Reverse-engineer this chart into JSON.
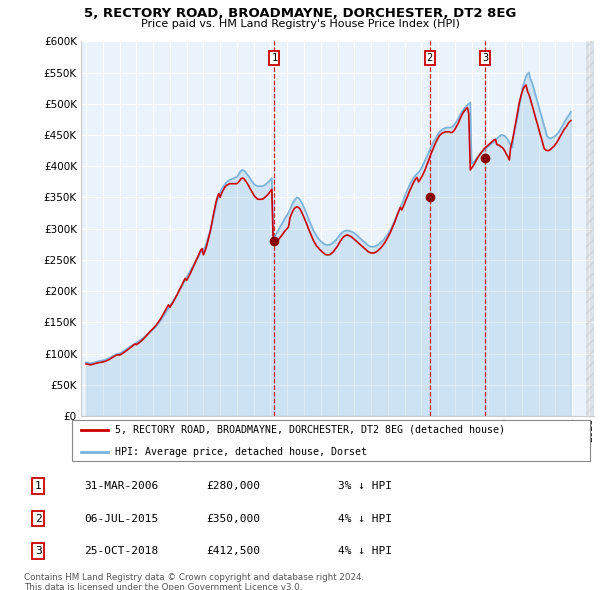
{
  "title": "5, RECTORY ROAD, BROADMAYNE, DORCHESTER, DT2 8EG",
  "subtitle": "Price paid vs. HM Land Registry's House Price Index (HPI)",
  "ylim": [
    0,
    600000
  ],
  "yticks": [
    0,
    50000,
    100000,
    150000,
    200000,
    250000,
    300000,
    350000,
    400000,
    450000,
    500000,
    550000,
    600000
  ],
  "xlim_start": 1994.7,
  "xlim_end": 2025.3,
  "sale_color": "#cc0000",
  "hpi_color": "#7ab3d9",
  "fill_color": "#ddeeff",
  "grid_color": "#cccccc",
  "bg_color": "#eaf3fb",
  "sale_dates": [
    2006.24,
    2015.5,
    2018.81
  ],
  "sale_prices": [
    280000,
    350000,
    412500
  ],
  "sale_labels": [
    "1",
    "2",
    "3"
  ],
  "transactions": [
    {
      "label": "1",
      "date": "31-MAR-2006",
      "price": "£280,000",
      "diff": "3% ↓ HPI"
    },
    {
      "label": "2",
      "date": "06-JUL-2015",
      "price": "£350,000",
      "diff": "4% ↓ HPI"
    },
    {
      "label": "3",
      "date": "25-OCT-2018",
      "price": "£412,500",
      "diff": "4% ↓ HPI"
    }
  ],
  "legend_line1": "5, RECTORY ROAD, BROADMAYNE, DORCHESTER, DT2 8EG (detached house)",
  "legend_line2": "HPI: Average price, detached house, Dorset",
  "footnote1": "Contains HM Land Registry data © Crown copyright and database right 2024.",
  "footnote2": "This data is licensed under the Open Government Licence v3.0.",
  "hpi_x": [
    1995.0,
    1995.08,
    1995.17,
    1995.25,
    1995.33,
    1995.42,
    1995.5,
    1995.58,
    1995.67,
    1995.75,
    1995.83,
    1995.92,
    1996.0,
    1996.08,
    1996.17,
    1996.25,
    1996.33,
    1996.42,
    1996.5,
    1996.58,
    1996.67,
    1996.75,
    1996.83,
    1996.92,
    1997.0,
    1997.08,
    1997.17,
    1997.25,
    1997.33,
    1997.42,
    1997.5,
    1997.58,
    1997.67,
    1997.75,
    1997.83,
    1997.92,
    1998.0,
    1998.08,
    1998.17,
    1998.25,
    1998.33,
    1998.42,
    1998.5,
    1998.58,
    1998.67,
    1998.75,
    1998.83,
    1998.92,
    1999.0,
    1999.08,
    1999.17,
    1999.25,
    1999.33,
    1999.42,
    1999.5,
    1999.58,
    1999.67,
    1999.75,
    1999.83,
    1999.92,
    2000.0,
    2000.08,
    2000.17,
    2000.25,
    2000.33,
    2000.42,
    2000.5,
    2000.58,
    2000.67,
    2000.75,
    2000.83,
    2000.92,
    2001.0,
    2001.08,
    2001.17,
    2001.25,
    2001.33,
    2001.42,
    2001.5,
    2001.58,
    2001.67,
    2001.75,
    2001.83,
    2001.92,
    2002.0,
    2002.08,
    2002.17,
    2002.25,
    2002.33,
    2002.42,
    2002.5,
    2002.58,
    2002.67,
    2002.75,
    2002.83,
    2002.92,
    2003.0,
    2003.08,
    2003.17,
    2003.25,
    2003.33,
    2003.42,
    2003.5,
    2003.58,
    2003.67,
    2003.75,
    2003.83,
    2003.92,
    2004.0,
    2004.08,
    2004.17,
    2004.25,
    2004.33,
    2004.42,
    2004.5,
    2004.58,
    2004.67,
    2004.75,
    2004.83,
    2004.92,
    2005.0,
    2005.08,
    2005.17,
    2005.25,
    2005.33,
    2005.42,
    2005.5,
    2005.58,
    2005.67,
    2005.75,
    2005.83,
    2005.92,
    2006.0,
    2006.08,
    2006.17,
    2006.25,
    2006.33,
    2006.42,
    2006.5,
    2006.58,
    2006.67,
    2006.75,
    2006.83,
    2006.92,
    2007.0,
    2007.08,
    2007.17,
    2007.25,
    2007.33,
    2007.42,
    2007.5,
    2007.58,
    2007.67,
    2007.75,
    2007.83,
    2007.92,
    2008.0,
    2008.08,
    2008.17,
    2008.25,
    2008.33,
    2008.42,
    2008.5,
    2008.58,
    2008.67,
    2008.75,
    2008.83,
    2008.92,
    2009.0,
    2009.08,
    2009.17,
    2009.25,
    2009.33,
    2009.42,
    2009.5,
    2009.58,
    2009.67,
    2009.75,
    2009.83,
    2009.92,
    2010.0,
    2010.08,
    2010.17,
    2010.25,
    2010.33,
    2010.42,
    2010.5,
    2010.58,
    2010.67,
    2010.75,
    2010.83,
    2010.92,
    2011.0,
    2011.08,
    2011.17,
    2011.25,
    2011.33,
    2011.42,
    2011.5,
    2011.58,
    2011.67,
    2011.75,
    2011.83,
    2011.92,
    2012.0,
    2012.08,
    2012.17,
    2012.25,
    2012.33,
    2012.42,
    2012.5,
    2012.58,
    2012.67,
    2012.75,
    2012.83,
    2012.92,
    2013.0,
    2013.08,
    2013.17,
    2013.25,
    2013.33,
    2013.42,
    2013.5,
    2013.58,
    2013.67,
    2013.75,
    2013.83,
    2013.92,
    2014.0,
    2014.08,
    2014.17,
    2014.25,
    2014.33,
    2014.42,
    2014.5,
    2014.58,
    2014.67,
    2014.75,
    2014.83,
    2014.92,
    2015.0,
    2015.08,
    2015.17,
    2015.25,
    2015.33,
    2015.42,
    2015.5,
    2015.58,
    2015.67,
    2015.75,
    2015.83,
    2015.92,
    2016.0,
    2016.08,
    2016.17,
    2016.25,
    2016.33,
    2016.42,
    2016.5,
    2016.58,
    2016.67,
    2016.75,
    2016.83,
    2016.92,
    2017.0,
    2017.08,
    2017.17,
    2017.25,
    2017.33,
    2017.42,
    2017.5,
    2017.58,
    2017.67,
    2017.75,
    2017.83,
    2017.92,
    2018.0,
    2018.08,
    2018.17,
    2018.25,
    2018.33,
    2018.42,
    2018.5,
    2018.58,
    2018.67,
    2018.75,
    2018.83,
    2018.92,
    2019.0,
    2019.08,
    2019.17,
    2019.25,
    2019.33,
    2019.42,
    2019.5,
    2019.58,
    2019.67,
    2019.75,
    2019.83,
    2019.92,
    2020.0,
    2020.08,
    2020.17,
    2020.25,
    2020.33,
    2020.42,
    2020.5,
    2020.58,
    2020.67,
    2020.75,
    2020.83,
    2020.92,
    2021.0,
    2021.08,
    2021.17,
    2021.25,
    2021.33,
    2021.42,
    2021.5,
    2021.58,
    2021.67,
    2021.75,
    2021.83,
    2021.92,
    2022.0,
    2022.08,
    2022.17,
    2022.25,
    2022.33,
    2022.42,
    2022.5,
    2022.58,
    2022.67,
    2022.75,
    2022.83,
    2022.92,
    2023.0,
    2023.08,
    2023.17,
    2023.25,
    2023.33,
    2023.42,
    2023.5,
    2023.58,
    2023.67,
    2023.75,
    2023.83,
    2023.92,
    2024.0,
    2024.08,
    2024.17,
    2024.25,
    2024.33,
    2024.42,
    2024.5,
    2024.58,
    2024.67,
    2024.75
  ],
  "hpi_y": [
    86000,
    85500,
    84800,
    84200,
    84500,
    85000,
    85800,
    86500,
    87200,
    87800,
    88200,
    88500,
    89000,
    89500,
    90200,
    91000,
    92000,
    93200,
    94500,
    95800,
    97000,
    98200,
    99000,
    99500,
    100000,
    101000,
    102500,
    104000,
    105500,
    107000,
    108500,
    110000,
    111500,
    113000,
    114500,
    116000,
    117000,
    118500,
    120000,
    121500,
    123000,
    125000,
    127000,
    129000,
    131000,
    133000,
    135000,
    137000,
    139000,
    141000,
    143500,
    146000,
    149000,
    152000,
    155000,
    158500,
    162000,
    165500,
    169000,
    172500,
    176000,
    179500,
    183000,
    186500,
    190000,
    194000,
    198000,
    202000,
    206000,
    210000,
    214000,
    218000,
    222000,
    226000,
    230000,
    234000,
    238000,
    242000,
    246000,
    250000,
    254000,
    258000,
    262000,
    264000,
    266000,
    270000,
    276000,
    283000,
    290000,
    298000,
    307000,
    317000,
    328000,
    338000,
    347000,
    353000,
    358000,
    363000,
    367000,
    370000,
    373000,
    375000,
    377000,
    378000,
    379000,
    380000,
    381000,
    382000,
    383000,
    386000,
    390000,
    393000,
    394000,
    393000,
    391000,
    388000,
    385000,
    382000,
    378000,
    375000,
    372000,
    370000,
    369000,
    368000,
    368000,
    368000,
    368000,
    369000,
    370000,
    372000,
    374000,
    376000,
    378000,
    381000,
    284000,
    287000,
    291000,
    295000,
    299000,
    303000,
    307000,
    311000,
    315000,
    319000,
    322000,
    326000,
    331000,
    336000,
    341000,
    345000,
    348000,
    350000,
    349000,
    347000,
    343000,
    339000,
    334000,
    329000,
    323000,
    317000,
    312000,
    306000,
    301000,
    296000,
    292000,
    288000,
    285000,
    282000,
    280000,
    278000,
    276000,
    275000,
    274000,
    274000,
    274000,
    275000,
    276000,
    278000,
    280000,
    282000,
    285000,
    288000,
    291000,
    293000,
    295000,
    296000,
    297000,
    297000,
    297000,
    296000,
    295000,
    294000,
    293000,
    291000,
    289000,
    287000,
    285000,
    283000,
    281000,
    279000,
    277000,
    275000,
    273000,
    272000,
    271000,
    271000,
    271000,
    272000,
    273000,
    274000,
    276000,
    278000,
    280000,
    282000,
    285000,
    288000,
    291000,
    295000,
    299000,
    303000,
    308000,
    313000,
    318000,
    324000,
    329000,
    334000,
    339000,
    345000,
    351000,
    357000,
    362000,
    367000,
    372000,
    376000,
    380000,
    383000,
    386000,
    388000,
    390000,
    393000,
    397000,
    401000,
    406000,
    411000,
    416000,
    421000,
    426000,
    431000,
    436000,
    440000,
    444000,
    448000,
    452000,
    455000,
    457000,
    459000,
    460000,
    461000,
    462000,
    462000,
    462000,
    462000,
    463000,
    465000,
    468000,
    471000,
    475000,
    479000,
    483000,
    487000,
    490000,
    493000,
    496000,
    498000,
    500000,
    502000,
    404000,
    406000,
    408000,
    411000,
    414000,
    417000,
    420000,
    422000,
    424000,
    426000,
    428000,
    430000,
    432000,
    434000,
    436000,
    438000,
    440000,
    442000,
    444000,
    446000,
    448000,
    450000,
    450000,
    449000,
    448000,
    445000,
    442000,
    438000,
    434000,
    430000,
    450000,
    460000,
    470000,
    482000,
    495000,
    508000,
    520000,
    530000,
    538000,
    544000,
    548000,
    550000,
    540000,
    535000,
    528000,
    520000,
    512000,
    504000,
    496000,
    488000,
    480000,
    472000,
    464000,
    456000,
    448000,
    446000,
    445000,
    445000,
    446000,
    447000,
    449000,
    451000,
    454000,
    457000,
    461000,
    465000,
    469000,
    473000,
    477000,
    480000,
    483000,
    487000,
    490000,
    492000
  ],
  "price_x": [
    1995.0,
    1995.08,
    1995.17,
    1995.25,
    1995.33,
    1995.42,
    1995.5,
    1995.58,
    1995.67,
    1995.75,
    1995.83,
    1995.92,
    1996.0,
    1996.08,
    1996.17,
    1996.25,
    1996.33,
    1996.42,
    1996.5,
    1996.58,
    1996.67,
    1996.75,
    1996.83,
    1996.92,
    1997.0,
    1997.08,
    1997.17,
    1997.25,
    1997.33,
    1997.42,
    1997.5,
    1997.58,
    1997.67,
    1997.75,
    1997.83,
    1997.92,
    1998.0,
    1998.08,
    1998.17,
    1998.25,
    1998.33,
    1998.42,
    1998.5,
    1998.58,
    1998.67,
    1998.75,
    1998.83,
    1998.92,
    1999.0,
    1999.08,
    1999.17,
    1999.25,
    1999.33,
    1999.42,
    1999.5,
    1999.58,
    1999.67,
    1999.75,
    1999.83,
    1999.92,
    2000.0,
    2000.08,
    2000.17,
    2000.25,
    2000.33,
    2000.42,
    2000.5,
    2000.58,
    2000.67,
    2000.75,
    2000.83,
    2000.92,
    2001.0,
    2001.08,
    2001.17,
    2001.25,
    2001.33,
    2001.42,
    2001.5,
    2001.58,
    2001.67,
    2001.75,
    2001.83,
    2001.92,
    2002.0,
    2002.08,
    2002.17,
    2002.25,
    2002.33,
    2002.42,
    2002.5,
    2002.58,
    2002.67,
    2002.75,
    2002.83,
    2002.92,
    2003.0,
    2003.08,
    2003.17,
    2003.25,
    2003.33,
    2003.42,
    2003.5,
    2003.58,
    2003.67,
    2003.75,
    2003.83,
    2003.92,
    2004.0,
    2004.08,
    2004.17,
    2004.25,
    2004.33,
    2004.42,
    2004.5,
    2004.58,
    2004.67,
    2004.75,
    2004.83,
    2004.92,
    2005.0,
    2005.08,
    2005.17,
    2005.25,
    2005.33,
    2005.42,
    2005.5,
    2005.58,
    2005.67,
    2005.75,
    2005.83,
    2005.92,
    2006.0,
    2006.08,
    2006.17,
    2006.25,
    2006.33,
    2006.42,
    2006.5,
    2006.58,
    2006.67,
    2006.75,
    2006.83,
    2006.92,
    2007.0,
    2007.08,
    2007.17,
    2007.25,
    2007.33,
    2007.42,
    2007.5,
    2007.58,
    2007.67,
    2007.75,
    2007.83,
    2007.92,
    2008.0,
    2008.08,
    2008.17,
    2008.25,
    2008.33,
    2008.42,
    2008.5,
    2008.58,
    2008.67,
    2008.75,
    2008.83,
    2008.92,
    2009.0,
    2009.08,
    2009.17,
    2009.25,
    2009.33,
    2009.42,
    2009.5,
    2009.58,
    2009.67,
    2009.75,
    2009.83,
    2009.92,
    2010.0,
    2010.08,
    2010.17,
    2010.25,
    2010.33,
    2010.42,
    2010.5,
    2010.58,
    2010.67,
    2010.75,
    2010.83,
    2010.92,
    2011.0,
    2011.08,
    2011.17,
    2011.25,
    2011.33,
    2011.42,
    2011.5,
    2011.58,
    2011.67,
    2011.75,
    2011.83,
    2011.92,
    2012.0,
    2012.08,
    2012.17,
    2012.25,
    2012.33,
    2012.42,
    2012.5,
    2012.58,
    2012.67,
    2012.75,
    2012.83,
    2012.92,
    2013.0,
    2013.08,
    2013.17,
    2013.25,
    2013.33,
    2013.42,
    2013.5,
    2013.58,
    2013.67,
    2013.75,
    2013.83,
    2013.92,
    2014.0,
    2014.08,
    2014.17,
    2014.25,
    2014.33,
    2014.42,
    2014.5,
    2014.58,
    2014.67,
    2014.75,
    2014.83,
    2014.92,
    2015.0,
    2015.08,
    2015.17,
    2015.25,
    2015.33,
    2015.42,
    2015.5,
    2015.58,
    2015.67,
    2015.75,
    2015.83,
    2015.92,
    2016.0,
    2016.08,
    2016.17,
    2016.25,
    2016.33,
    2016.42,
    2016.5,
    2016.58,
    2016.67,
    2016.75,
    2016.83,
    2016.92,
    2017.0,
    2017.08,
    2017.17,
    2017.25,
    2017.33,
    2017.42,
    2017.5,
    2017.58,
    2017.67,
    2017.75,
    2017.83,
    2017.92,
    2018.0,
    2018.08,
    2018.17,
    2018.25,
    2018.33,
    2018.42,
    2018.5,
    2018.58,
    2018.67,
    2018.75,
    2018.83,
    2018.92,
    2019.0,
    2019.08,
    2019.17,
    2019.25,
    2019.33,
    2019.42,
    2019.5,
    2019.58,
    2019.67,
    2019.75,
    2019.83,
    2019.92,
    2020.0,
    2020.08,
    2020.17,
    2020.25,
    2020.33,
    2020.42,
    2020.5,
    2020.58,
    2020.67,
    2020.75,
    2020.83,
    2020.92,
    2021.0,
    2021.08,
    2021.17,
    2021.25,
    2021.33,
    2021.42,
    2021.5,
    2021.58,
    2021.67,
    2021.75,
    2021.83,
    2021.92,
    2022.0,
    2022.08,
    2022.17,
    2022.25,
    2022.33,
    2022.42,
    2022.5,
    2022.58,
    2022.67,
    2022.75,
    2022.83,
    2022.92,
    2023.0,
    2023.08,
    2023.17,
    2023.25,
    2023.33,
    2023.42,
    2023.5,
    2023.58,
    2023.67,
    2023.75,
    2023.83,
    2023.92,
    2024.0,
    2024.08,
    2024.17,
    2024.25,
    2024.33,
    2024.42,
    2024.5,
    2024.58,
    2024.67,
    2024.75
  ],
  "price_y": [
    83500,
    83000,
    82500,
    82000,
    82200,
    82800,
    83500,
    84200,
    84800,
    85300,
    85700,
    86000,
    86500,
    87000,
    87800,
    88700,
    89700,
    91000,
    92300,
    93700,
    95100,
    96500,
    97500,
    98000,
    97500,
    98500,
    100000,
    101500,
    103000,
    104800,
    106500,
    108200,
    110000,
    111800,
    113500,
    115200,
    114000,
    115500,
    117200,
    119000,
    121000,
    123200,
    125500,
    128000,
    130500,
    133000,
    135500,
    137800,
    140000,
    142500,
    145000,
    148000,
    151200,
    154500,
    158000,
    162000,
    166000,
    170000,
    174000,
    178000,
    174000,
    177500,
    181000,
    185000,
    189000,
    193500,
    198000,
    202500,
    207000,
    211500,
    216000,
    220500,
    217000,
    221000,
    225500,
    230000,
    235000,
    240000,
    245000,
    250000,
    255000,
    260000,
    265000,
    268000,
    258000,
    263000,
    270000,
    278000,
    287000,
    297000,
    308000,
    320000,
    332000,
    342000,
    350000,
    356000,
    350000,
    356000,
    361000,
    365000,
    368000,
    370000,
    371000,
    372000,
    372000,
    372000,
    372000,
    372000,
    372000,
    374000,
    377000,
    380000,
    381000,
    380000,
    377000,
    374000,
    370000,
    366000,
    362000,
    358000,
    354000,
    351000,
    349000,
    347000,
    347000,
    347000,
    347000,
    348000,
    350000,
    352000,
    354000,
    357000,
    360000,
    363000,
    275000,
    277000,
    279000,
    281000,
    283000,
    286000,
    289000,
    292000,
    295000,
    298000,
    300000,
    303000,
    318000,
    323000,
    328000,
    332000,
    334000,
    335000,
    334000,
    332000,
    328000,
    323000,
    318000,
    313000,
    307000,
    301000,
    296000,
    290000,
    285000,
    280000,
    276000,
    272000,
    270000,
    267000,
    265000,
    263000,
    261000,
    259000,
    258000,
    258000,
    258000,
    259000,
    261000,
    263000,
    266000,
    269000,
    272000,
    276000,
    280000,
    283000,
    286000,
    288000,
    289000,
    290000,
    289000,
    288000,
    287000,
    285000,
    283000,
    281000,
    279000,
    277000,
    275000,
    273000,
    271000,
    269000,
    267000,
    265000,
    263000,
    262000,
    261000,
    261000,
    261000,
    262000,
    263000,
    265000,
    267000,
    269000,
    272000,
    275000,
    278000,
    282000,
    286000,
    290000,
    295000,
    300000,
    305000,
    311000,
    317000,
    323000,
    329000,
    334000,
    330000,
    335000,
    340000,
    346000,
    351000,
    357000,
    362000,
    367000,
    372000,
    376000,
    380000,
    382000,
    375000,
    378000,
    382000,
    386000,
    391000,
    396000,
    402000,
    408000,
    414000,
    420000,
    426000,
    431000,
    436000,
    441000,
    445000,
    449000,
    451000,
    453000,
    454000,
    455000,
    455000,
    455000,
    455000,
    454000,
    454000,
    456000,
    459000,
    463000,
    467000,
    472000,
    477000,
    482000,
    486000,
    489000,
    492000,
    494000,
    484000,
    394000,
    397000,
    400000,
    404000,
    408000,
    412000,
    416000,
    419000,
    422000,
    425000,
    428000,
    430000,
    432000,
    434000,
    436000,
    438000,
    440000,
    442000,
    443000,
    435000,
    434000,
    433000,
    431000,
    430000,
    427000,
    423000,
    419000,
    415000,
    410000,
    430000,
    440000,
    450000,
    462000,
    475000,
    488000,
    500000,
    510000,
    518000,
    524000,
    528000,
    530000,
    520000,
    515000,
    508000,
    500000,
    492000,
    484000,
    476000,
    468000,
    460000,
    452000,
    444000,
    436000,
    428000,
    426000,
    425000,
    425000,
    426000,
    428000,
    430000,
    432000,
    435000,
    438000,
    442000,
    446000,
    450000,
    454000,
    458000,
    461000,
    464000,
    468000,
    471000,
    473000
  ]
}
